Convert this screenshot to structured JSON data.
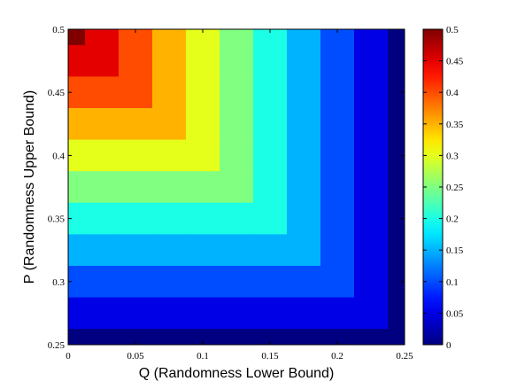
{
  "chart_data": {
    "type": "heatmap",
    "xlabel": "Q (Randomness Lower Bound)",
    "ylabel": "P (Randomness Upper Bound)",
    "x": [
      0,
      0.025,
      0.05,
      0.075,
      0.1,
      0.125,
      0.15,
      0.175,
      0.2,
      0.225,
      0.25
    ],
    "y": [
      0.5,
      0.475,
      0.45,
      0.425,
      0.4,
      0.375,
      0.35,
      0.325,
      0.3,
      0.275,
      0.25
    ],
    "z": [
      [
        0.5,
        0.45,
        0.4,
        0.35,
        0.3,
        0.25,
        0.2,
        0.15,
        0.1,
        0.05,
        0
      ],
      [
        0.45,
        0.45,
        0.4,
        0.35,
        0.3,
        0.25,
        0.2,
        0.15,
        0.1,
        0.05,
        0
      ],
      [
        0.4,
        0.4,
        0.4,
        0.35,
        0.3,
        0.25,
        0.2,
        0.15,
        0.1,
        0.05,
        0
      ],
      [
        0.35,
        0.35,
        0.35,
        0.35,
        0.3,
        0.25,
        0.2,
        0.15,
        0.1,
        0.05,
        0
      ],
      [
        0.3,
        0.3,
        0.3,
        0.3,
        0.3,
        0.25,
        0.2,
        0.15,
        0.1,
        0.05,
        0
      ],
      [
        0.25,
        0.25,
        0.25,
        0.25,
        0.25,
        0.25,
        0.2,
        0.15,
        0.1,
        0.05,
        0
      ],
      [
        0.2,
        0.2,
        0.2,
        0.2,
        0.2,
        0.2,
        0.2,
        0.15,
        0.1,
        0.05,
        0
      ],
      [
        0.15,
        0.15,
        0.15,
        0.15,
        0.15,
        0.15,
        0.15,
        0.15,
        0.1,
        0.05,
        0
      ],
      [
        0.1,
        0.1,
        0.1,
        0.1,
        0.1,
        0.1,
        0.1,
        0.1,
        0.1,
        0.05,
        0
      ],
      [
        0.05,
        0.05,
        0.05,
        0.05,
        0.05,
        0.05,
        0.05,
        0.05,
        0.05,
        0.05,
        0
      ],
      [
        0,
        0,
        0,
        0,
        0,
        0,
        0,
        0,
        0,
        0,
        0
      ]
    ],
    "colormap": "jet",
    "xlim": [
      0,
      0.25
    ],
    "xticks": [
      0,
      0.05,
      0.1,
      0.15,
      0.2,
      0.25
    ],
    "ylim": [
      0.25,
      0.5
    ],
    "yticks": [
      0.25,
      0.3,
      0.35,
      0.4,
      0.45,
      0.5
    ],
    "zlim": [
      0,
      0.5
    ],
    "zticks": [
      0,
      0.05,
      0.1,
      0.15,
      0.2,
      0.25,
      0.3,
      0.35,
      0.4,
      0.45,
      0.5
    ]
  }
}
